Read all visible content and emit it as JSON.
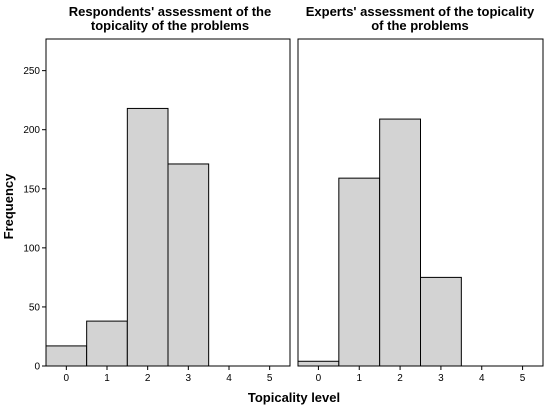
{
  "chart_data": {
    "type": "bar",
    "xlabel": "Topicality level",
    "ylabel": "Frequency",
    "ylim": [
      0,
      270
    ],
    "y_ticks": [
      "0",
      "50",
      "100",
      "150",
      "200",
      "250"
    ],
    "x_ticks": [
      "0",
      "1",
      "2",
      "3",
      "4",
      "5"
    ],
    "bar_color": "#d3d3d3",
    "edge_color": "#000000",
    "grid": false,
    "panels": [
      {
        "title_lines": [
          "Respondents' assessment of the",
          "topicality of the problems"
        ],
        "categories": [
          "0",
          "1",
          "2",
          "3",
          "4",
          "5"
        ],
        "values": [
          17,
          38,
          218,
          171,
          0,
          0
        ]
      },
      {
        "title_lines": [
          "Experts' assessment of the topicality",
          "of the problems"
        ],
        "categories": [
          "0",
          "1",
          "2",
          "3",
          "4",
          "5"
        ],
        "values": [
          4,
          159,
          209,
          75,
          0,
          0
        ]
      }
    ]
  }
}
